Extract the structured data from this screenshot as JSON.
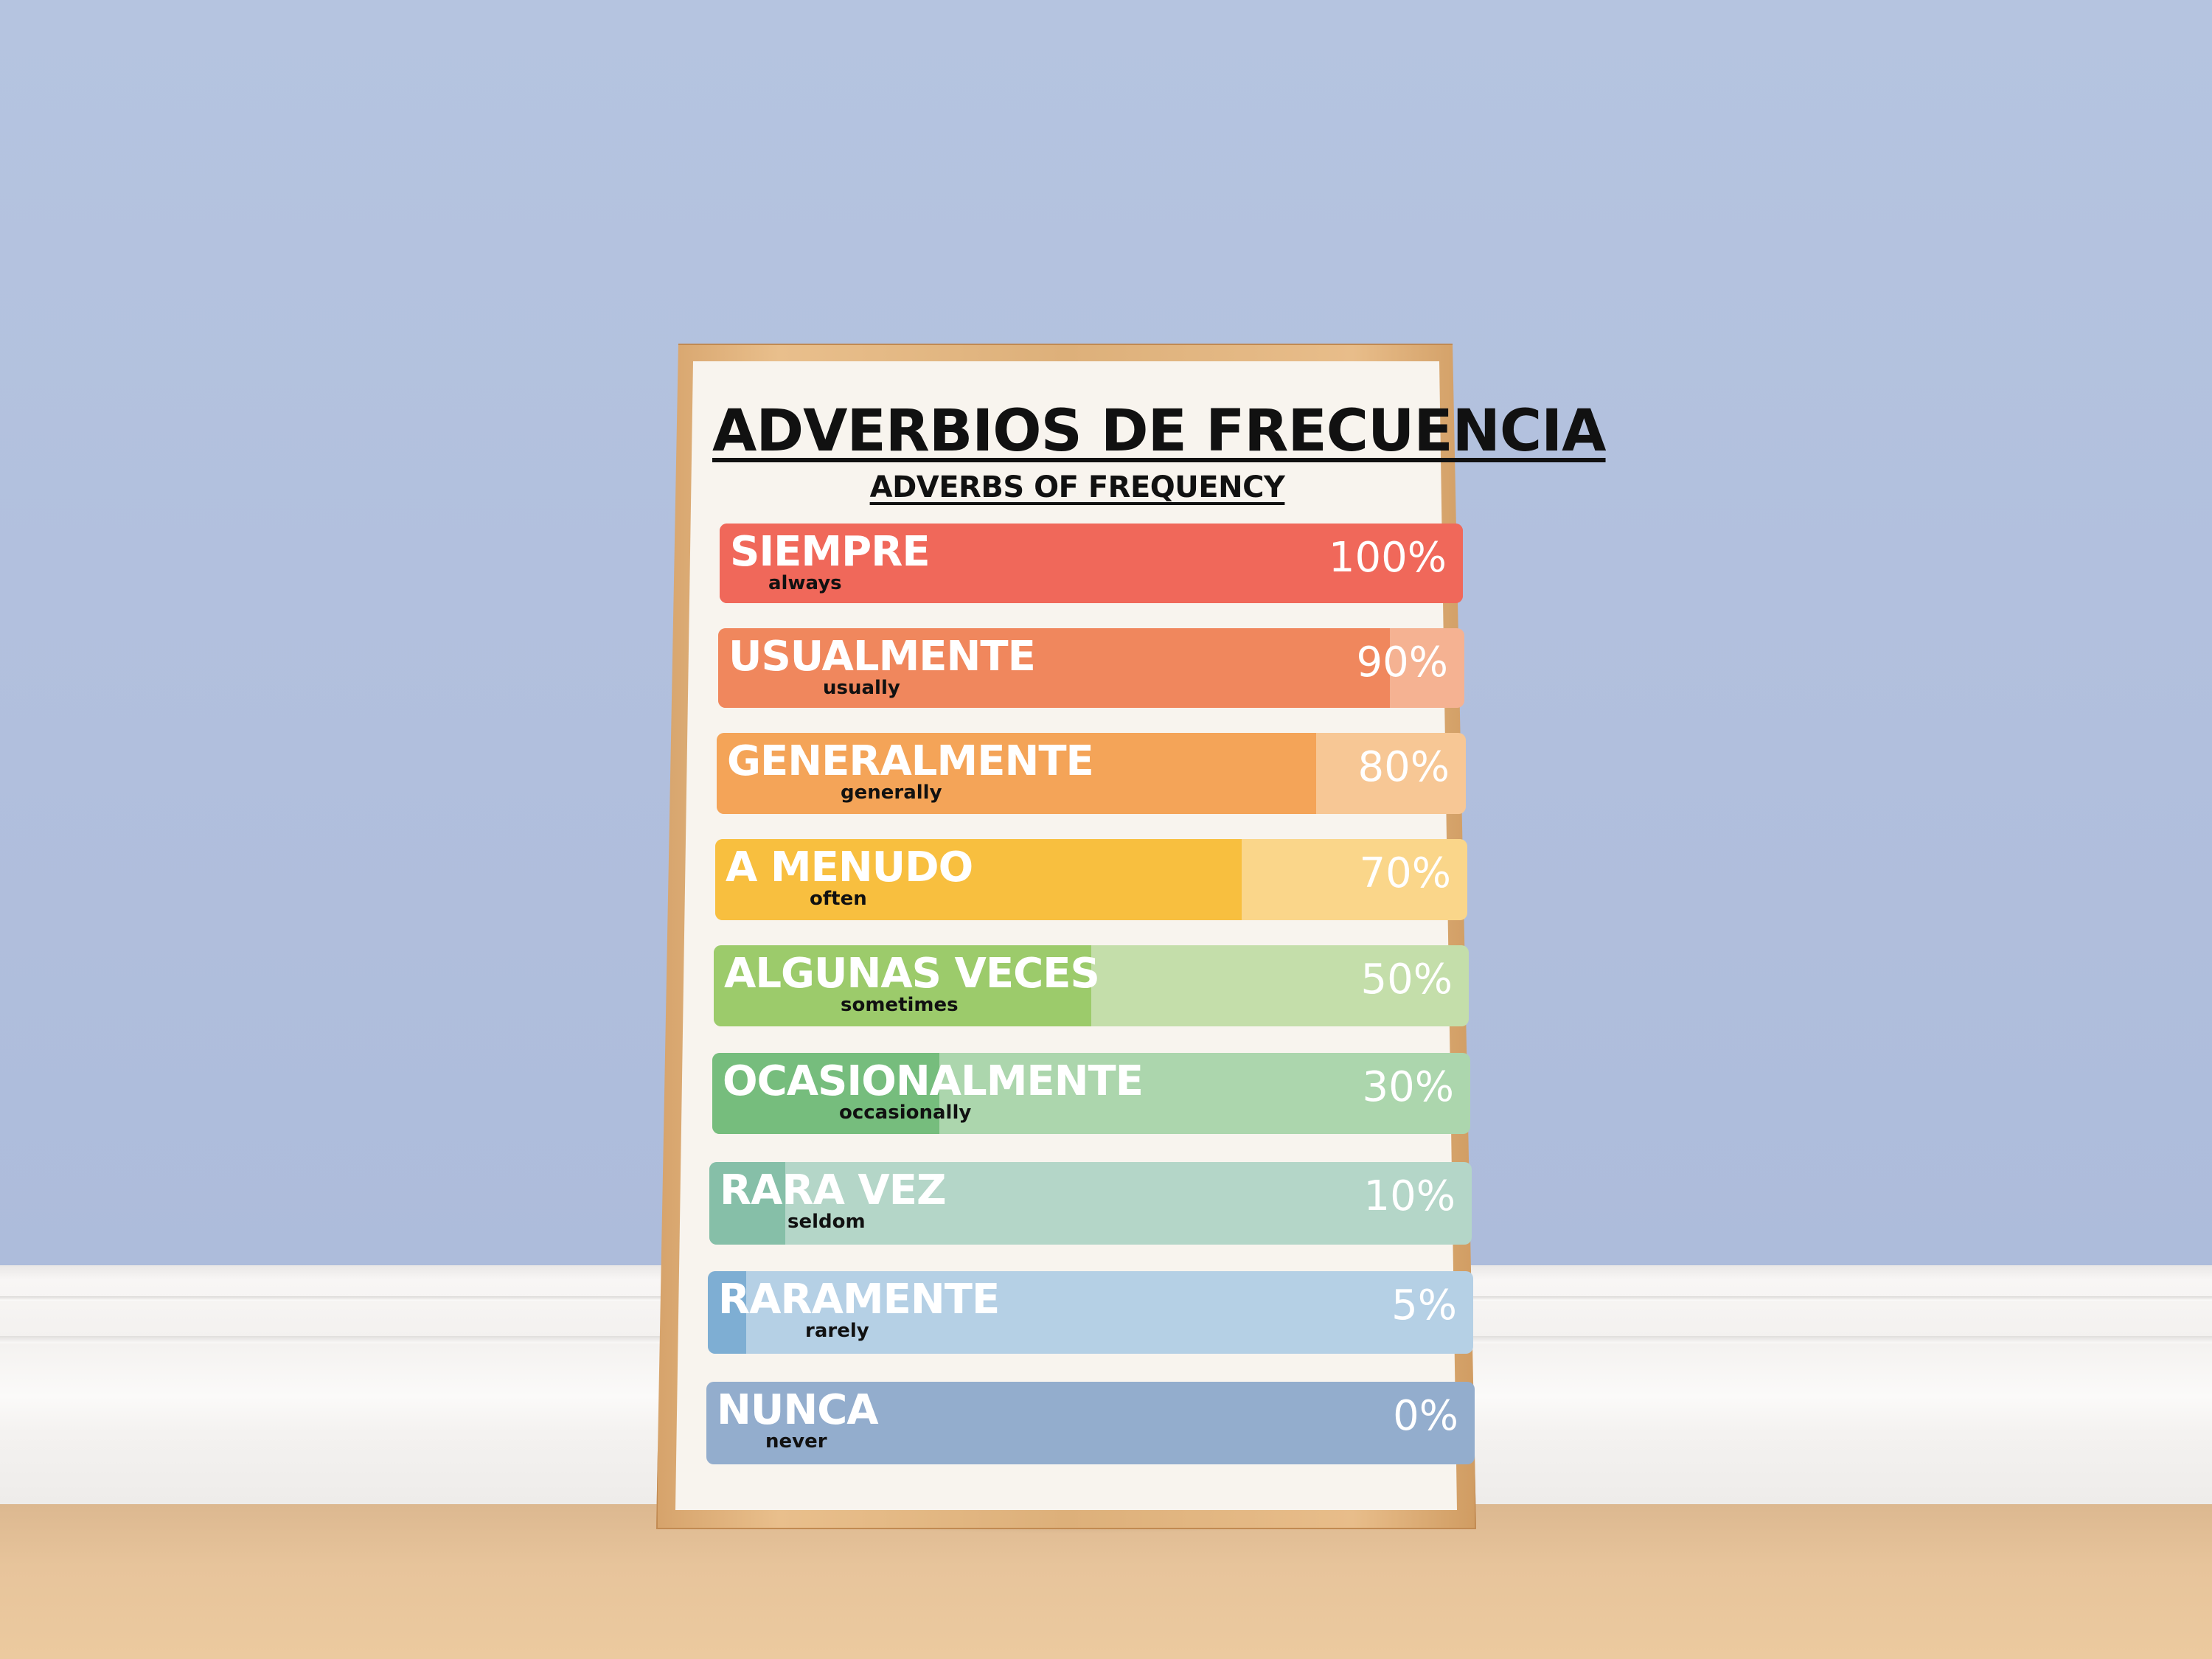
{
  "poster": {
    "title": "ADVERBIOS DE FRECUENCIA",
    "subtitle": "ADVERBS OF FREQUENCY"
  },
  "rows": [
    {
      "spanish": "SIEMPRE",
      "english": "always",
      "percent_label": "100%",
      "level": 1.0,
      "fill_color": "#f0685a",
      "track_color": "#f0685a"
    },
    {
      "spanish": "USUALMENTE",
      "english": "usually",
      "percent_label": "90%",
      "level": 0.9,
      "fill_color": "#f0875d",
      "track_color": "#f5b292"
    },
    {
      "spanish": "GENERALMENTE",
      "english": "generally",
      "percent_label": "80%",
      "level": 0.8,
      "fill_color": "#f4a458",
      "track_color": "#f7c795"
    },
    {
      "spanish": "A MENUDO",
      "english": "often",
      "percent_label": "70%",
      "level": 0.7,
      "fill_color": "#f8bf3f",
      "track_color": "#fad68a"
    },
    {
      "spanish": "ALGUNAS VECES",
      "english": "sometimes",
      "percent_label": "50%",
      "level": 0.5,
      "fill_color": "#9ccb6b",
      "track_color": "#c4deaa"
    },
    {
      "spanish": "OCASIONALMENTE",
      "english": "occasionally",
      "percent_label": "30%",
      "level": 0.3,
      "fill_color": "#76bd7d",
      "track_color": "#acd6ad"
    },
    {
      "spanish": "RARA VEZ",
      "english": "seldom",
      "percent_label": "10%",
      "level": 0.1,
      "fill_color": "#86bfa8",
      "track_color": "#b4d6c8"
    },
    {
      "spanish": "RARAMENTE",
      "english": "rarely",
      "percent_label": "5%",
      "level": 0.05,
      "fill_color": "#7eaed3",
      "track_color": "#b5d0e5"
    },
    {
      "spanish": "NUNCA",
      "english": "never",
      "percent_label": "0%",
      "level": 0.0,
      "fill_color": "#93adcd",
      "track_color": "#93adcd"
    }
  ]
}
